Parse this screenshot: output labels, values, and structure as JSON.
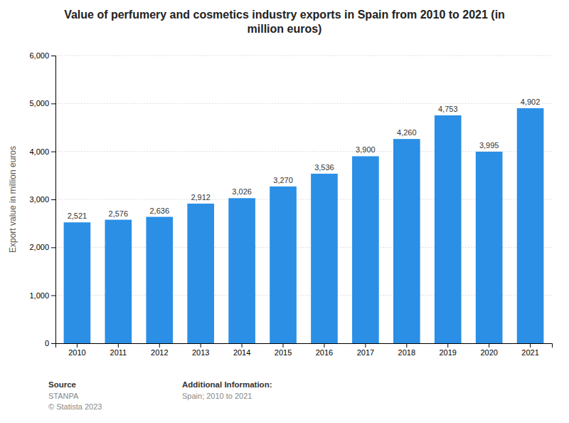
{
  "chart_data": {
    "type": "bar",
    "title": "Value of perfumery and cosmetics industry exports in Spain from 2010 to 2021 (in\nmillion euros)",
    "categories": [
      "2010",
      "2011",
      "2012",
      "2013",
      "2014",
      "2015",
      "2016",
      "2017",
      "2018",
      "2019",
      "2020",
      "2021"
    ],
    "values": [
      2521,
      2576,
      2636,
      2912,
      3026,
      3270,
      3536,
      3900,
      4260,
      4753,
      3995,
      4902
    ],
    "value_labels": [
      "2,521",
      "2,576",
      "2,636",
      "2,912",
      "3,026",
      "3,270",
      "3,536",
      "3,900",
      "4,260",
      "4,753",
      "3,995",
      "4,902"
    ],
    "data_labels": true,
    "color": "#2b8fe6",
    "ylabel": "Export value in million euros",
    "ylim": [
      0,
      6000
    ],
    "yticks": [
      0,
      {
        "value": 1000,
        "label": "1,000"
      },
      {
        "value": 2000,
        "label": "2,000"
      },
      {
        "value": 3000,
        "label": "3,000"
      },
      {
        "value": 4000,
        "label": "4,000"
      },
      {
        "value": 5000,
        "label": "5,000"
      },
      {
        "value": 6000,
        "label": "6,000"
      }
    ],
    "grid": true,
    "annotations": [
      "Source",
      "STANPA\n© Statista 2023",
      "Additional Information:",
      "Spain; 2010 to 2021"
    ]
  }
}
